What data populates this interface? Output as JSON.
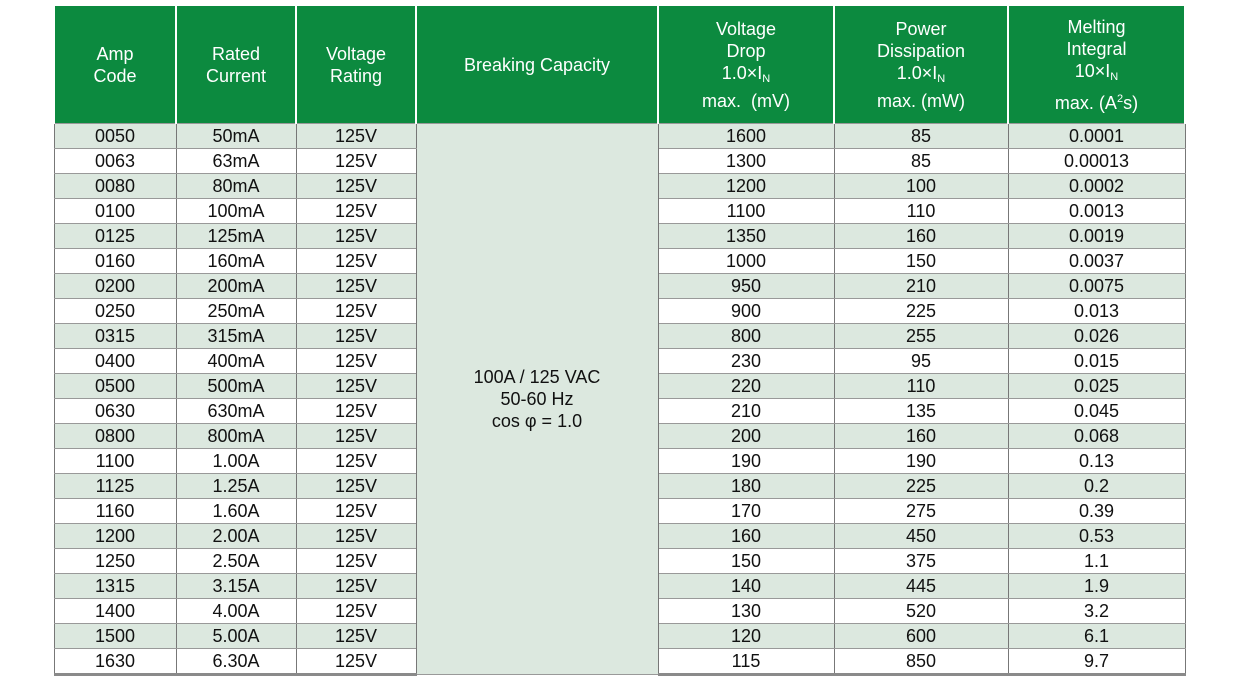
{
  "headers": {
    "amp_code": [
      "Amp",
      "Code"
    ],
    "rated_current": [
      "Rated",
      "Current"
    ],
    "voltage_rating": [
      "Voltage",
      "Rating"
    ],
    "breaking_capacity": "Breaking Capacity",
    "voltage_drop": {
      "line1": "Voltage",
      "line2": "Drop",
      "mult": "1.0×I",
      "sub": "N",
      "unit": "max.  (mV)"
    },
    "power_dissipation": {
      "line1": "Power",
      "line2": "Dissipation",
      "mult": "1.0×I",
      "sub": "N",
      "unit": "max. (mW)"
    },
    "melting_integral": {
      "line1": "Melting",
      "line2": "Integral",
      "mult": "10×I",
      "sub": "N",
      "unit_a": "max. (A",
      "unit_sup": "2",
      "unit_b": "s)"
    }
  },
  "breaking_capacity_text": [
    "100A / 125 VAC",
    "50-60 Hz",
    "cos φ = 1.0"
  ],
  "rows": [
    {
      "amp_code": "0050",
      "rated_current": "50mA",
      "voltage_rating": "125V",
      "voltage_drop": "1600",
      "power_dissipation": "85",
      "melting_integral": "0.0001"
    },
    {
      "amp_code": "0063",
      "rated_current": "63mA",
      "voltage_rating": "125V",
      "voltage_drop": "1300",
      "power_dissipation": "85",
      "melting_integral": "0.00013"
    },
    {
      "amp_code": "0080",
      "rated_current": "80mA",
      "voltage_rating": "125V",
      "voltage_drop": "1200",
      "power_dissipation": "100",
      "melting_integral": "0.0002"
    },
    {
      "amp_code": "0100",
      "rated_current": "100mA",
      "voltage_rating": "125V",
      "voltage_drop": "1100",
      "power_dissipation": "110",
      "melting_integral": "0.0013"
    },
    {
      "amp_code": "0125",
      "rated_current": "125mA",
      "voltage_rating": "125V",
      "voltage_drop": "1350",
      "power_dissipation": "160",
      "melting_integral": "0.0019"
    },
    {
      "amp_code": "0160",
      "rated_current": "160mA",
      "voltage_rating": "125V",
      "voltage_drop": "1000",
      "power_dissipation": "150",
      "melting_integral": "0.0037"
    },
    {
      "amp_code": "0200",
      "rated_current": "200mA",
      "voltage_rating": "125V",
      "voltage_drop": "950",
      "power_dissipation": "210",
      "melting_integral": "0.0075"
    },
    {
      "amp_code": "0250",
      "rated_current": "250mA",
      "voltage_rating": "125V",
      "voltage_drop": "900",
      "power_dissipation": "225",
      "melting_integral": "0.013"
    },
    {
      "amp_code": "0315",
      "rated_current": "315mA",
      "voltage_rating": "125V",
      "voltage_drop": "800",
      "power_dissipation": "255",
      "melting_integral": "0.026"
    },
    {
      "amp_code": "0400",
      "rated_current": "400mA",
      "voltage_rating": "125V",
      "voltage_drop": "230",
      "power_dissipation": "95",
      "melting_integral": "0.015"
    },
    {
      "amp_code": "0500",
      "rated_current": "500mA",
      "voltage_rating": "125V",
      "voltage_drop": "220",
      "power_dissipation": "110",
      "melting_integral": "0.025"
    },
    {
      "amp_code": "0630",
      "rated_current": "630mA",
      "voltage_rating": "125V",
      "voltage_drop": "210",
      "power_dissipation": "135",
      "melting_integral": "0.045"
    },
    {
      "amp_code": "0800",
      "rated_current": "800mA",
      "voltage_rating": "125V",
      "voltage_drop": "200",
      "power_dissipation": "160",
      "melting_integral": "0.068"
    },
    {
      "amp_code": "1100",
      "rated_current": "1.00A",
      "voltage_rating": "125V",
      "voltage_drop": "190",
      "power_dissipation": "190",
      "melting_integral": "0.13"
    },
    {
      "amp_code": "1125",
      "rated_current": "1.25A",
      "voltage_rating": "125V",
      "voltage_drop": "180",
      "power_dissipation": "225",
      "melting_integral": "0.2"
    },
    {
      "amp_code": "1160",
      "rated_current": "1.60A",
      "voltage_rating": "125V",
      "voltage_drop": "170",
      "power_dissipation": "275",
      "melting_integral": "0.39"
    },
    {
      "amp_code": "1200",
      "rated_current": "2.00A",
      "voltage_rating": "125V",
      "voltage_drop": "160",
      "power_dissipation": "450",
      "melting_integral": "0.53"
    },
    {
      "amp_code": "1250",
      "rated_current": "2.50A",
      "voltage_rating": "125V",
      "voltage_drop": "150",
      "power_dissipation": "375",
      "melting_integral": "1.1"
    },
    {
      "amp_code": "1315",
      "rated_current": "3.15A",
      "voltage_rating": "125V",
      "voltage_drop": "140",
      "power_dissipation": "445",
      "melting_integral": "1.9"
    },
    {
      "amp_code": "1400",
      "rated_current": "4.00A",
      "voltage_rating": "125V",
      "voltage_drop": "130",
      "power_dissipation": "520",
      "melting_integral": "3.2"
    },
    {
      "amp_code": "1500",
      "rated_current": "5.00A",
      "voltage_rating": "125V",
      "voltage_drop": "120",
      "power_dissipation": "600",
      "melting_integral": "6.1"
    },
    {
      "amp_code": "1630",
      "rated_current": "6.30A",
      "voltage_rating": "125V",
      "voltage_drop": "115",
      "power_dissipation": "850",
      "melting_integral": "9.7"
    }
  ],
  "colors": {
    "header_bg": "#0c8a3f",
    "stripe": "#dce8df"
  }
}
